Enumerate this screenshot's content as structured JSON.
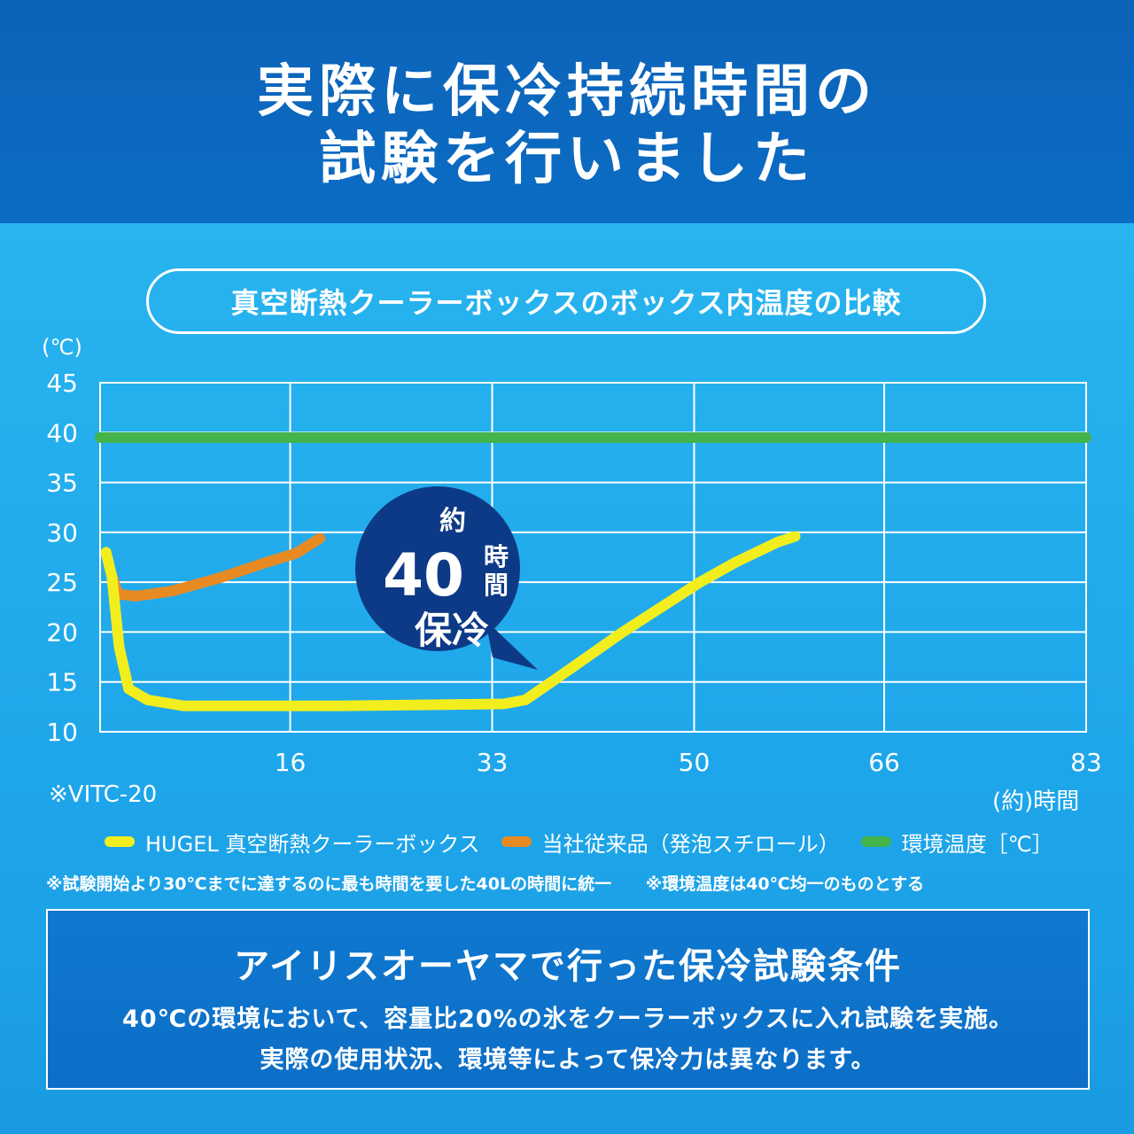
{
  "header": {
    "line1": "実際に保冷持続時間の",
    "line2": "試験を行いました"
  },
  "chart_title": "真空断熱クーラーボックスのボックス内温度の比較",
  "model_note": "※VITC-20",
  "callout": {
    "top": "約",
    "number": "40",
    "unit_top": "時",
    "unit_bottom": "間",
    "bottom": "保冷"
  },
  "legend": [
    {
      "label": "HUGEL 真空断熱クーラーボックス",
      "color": "#f2ee1e"
    },
    {
      "label": "当社従来品（発泡スチロール）",
      "color": "#e88a22"
    },
    {
      "label": "環境温度［℃］",
      "color": "#43b34a"
    }
  ],
  "notes": [
    "※試験開始より30℃までに達するのに最も時間を要した40Lの時間に統一",
    "※環境温度は40℃均一のものとする"
  ],
  "conditions": {
    "title": "アイリスオーヤマで行った保冷試験条件",
    "line1": "40℃の環境において、容量比20%の氷をクーラーボックスに入れ試験を実施。",
    "line2": "実際の使用状況、環境等によって保冷力は異なります。"
  },
  "colors": {
    "header_bg": "#0c63b8",
    "body_bg": "#1aa3e6",
    "hugel": "#f2ee1e",
    "conventional": "#e88a22",
    "ambient": "#43b34a",
    "callout_bg": "#0d3a86"
  },
  "chart_data": {
    "type": "line",
    "ylabel": "(℃)",
    "xlabel": "(約)時間",
    "xticks": [
      16,
      33,
      50,
      66,
      83
    ],
    "xtick_labels": [
      "16",
      "33",
      "50",
      "66",
      "83"
    ],
    "yticks": [
      10,
      15,
      20,
      25,
      30,
      35,
      40,
      45
    ],
    "ytick_labels": [
      "10",
      "15",
      "20",
      "25",
      "30",
      "35",
      "40",
      "45"
    ],
    "xlim": [
      0,
      83
    ],
    "ylim": [
      10,
      45
    ],
    "grid": true,
    "legend_position": "bottom",
    "series": [
      {
        "name": "HUGEL 真空断熱クーラーボックス",
        "color": "#f2ee1e",
        "x": [
          0.5,
          1.0,
          1.6,
          2.4,
          4.0,
          7.0,
          20.0,
          34.0,
          35.8,
          38.0,
          44.0,
          50.5,
          53.5,
          57.0,
          58.5
        ],
        "y": [
          28.0,
          25.5,
          18.5,
          14.3,
          13.2,
          12.6,
          12.6,
          12.8,
          13.2,
          15.0,
          20.0,
          25.0,
          27.0,
          29.0,
          29.6
        ]
      },
      {
        "name": "当社従来品（発泡スチロール）",
        "color": "#e88a22",
        "x": [
          0.5,
          0.9,
          1.5,
          3.0,
          6.0,
          10.0,
          13.5,
          16.5,
          18.5
        ],
        "y": [
          28.0,
          26.0,
          23.8,
          23.6,
          24.1,
          25.4,
          26.8,
          27.9,
          29.4
        ]
      },
      {
        "name": "環境温度［℃］",
        "color": "#43b34a",
        "x": [
          0,
          83
        ],
        "y": [
          39.5,
          39.5
        ]
      }
    ]
  }
}
